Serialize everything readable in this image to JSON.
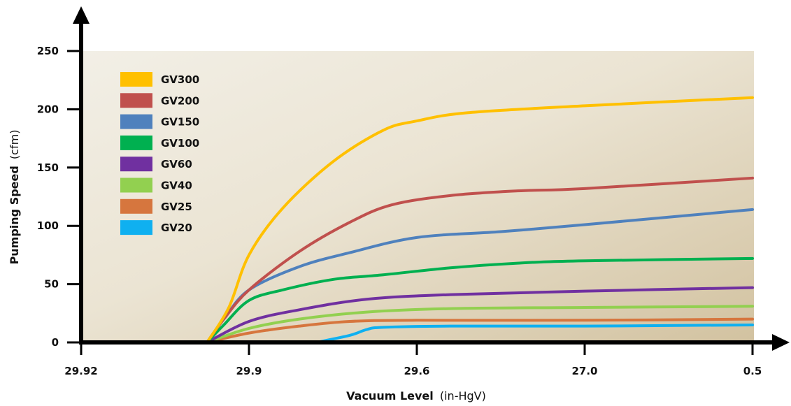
{
  "chart_data": {
    "type": "line",
    "title": "",
    "xlabel": {
      "main": "Vacuum Level",
      "unit": "(in-HgV)"
    },
    "ylabel": {
      "main": "Pumping Speed",
      "unit": "(cfm)"
    },
    "x_ticks": [
      "29.92",
      "29.9",
      "29.6",
      "27.0",
      "0.5"
    ],
    "y_ticks": [
      0,
      50,
      100,
      150,
      200,
      250
    ],
    "ylim": [
      0,
      250
    ],
    "grid": false,
    "legend_position": "top-left",
    "series": [
      {
        "name": "GV300",
        "color": "#FFC000",
        "points": [
          [
            0.75,
            0
          ],
          [
            0.88,
            30
          ],
          [
            1.0,
            75
          ],
          [
            1.2,
            115
          ],
          [
            1.5,
            155
          ],
          [
            1.8,
            182
          ],
          [
            2.0,
            190
          ],
          [
            2.3,
            197
          ],
          [
            3.0,
            203
          ],
          [
            4.0,
            210
          ]
        ]
      },
      {
        "name": "GV200",
        "color": "#C0504D",
        "points": [
          [
            0.75,
            0
          ],
          [
            0.85,
            20
          ],
          [
            1.0,
            45
          ],
          [
            1.3,
            78
          ],
          [
            1.6,
            103
          ],
          [
            1.85,
            118
          ],
          [
            2.2,
            126
          ],
          [
            2.6,
            130
          ],
          [
            3.0,
            132
          ],
          [
            4.0,
            141
          ]
        ]
      },
      {
        "name": "GV150",
        "color": "#4F81BD",
        "points": [
          [
            0.75,
            0
          ],
          [
            0.85,
            20
          ],
          [
            1.0,
            45
          ],
          [
            1.3,
            65
          ],
          [
            1.6,
            77
          ],
          [
            2.0,
            90
          ],
          [
            2.5,
            95
          ],
          [
            3.0,
            101
          ],
          [
            4.0,
            114
          ]
        ]
      },
      {
        "name": "GV100",
        "color": "#00B050",
        "points": [
          [
            0.75,
            0
          ],
          [
            0.85,
            15
          ],
          [
            1.0,
            36
          ],
          [
            1.2,
            45
          ],
          [
            1.5,
            54
          ],
          [
            1.8,
            58
          ],
          [
            2.2,
            64
          ],
          [
            2.6,
            68
          ],
          [
            3.0,
            70
          ],
          [
            4.0,
            72
          ]
        ]
      },
      {
        "name": "GV60",
        "color": "#7030A0",
        "points": [
          [
            0.75,
            0
          ],
          [
            1.0,
            18
          ],
          [
            1.3,
            28
          ],
          [
            1.7,
            37
          ],
          [
            2.2,
            41
          ],
          [
            3.0,
            44
          ],
          [
            4.0,
            47
          ]
        ]
      },
      {
        "name": "GV40",
        "color": "#92D050",
        "points": [
          [
            0.75,
            0
          ],
          [
            1.0,
            12
          ],
          [
            1.3,
            20
          ],
          [
            1.7,
            26
          ],
          [
            2.2,
            29
          ],
          [
            3.0,
            30
          ],
          [
            4.0,
            31
          ]
        ]
      },
      {
        "name": "GV25",
        "color": "#D6763E",
        "points": [
          [
            0.75,
            0
          ],
          [
            1.0,
            8
          ],
          [
            1.3,
            14
          ],
          [
            1.6,
            18
          ],
          [
            2.0,
            19
          ],
          [
            3.0,
            19
          ],
          [
            4.0,
            20
          ]
        ]
      },
      {
        "name": "GV20",
        "color": "#0FB0F0",
        "points": [
          [
            1.4,
            0
          ],
          [
            1.6,
            6
          ],
          [
            1.7,
            11
          ],
          [
            1.8,
            13
          ],
          [
            2.2,
            14
          ],
          [
            3.0,
            14
          ],
          [
            4.0,
            15
          ]
        ]
      }
    ]
  }
}
